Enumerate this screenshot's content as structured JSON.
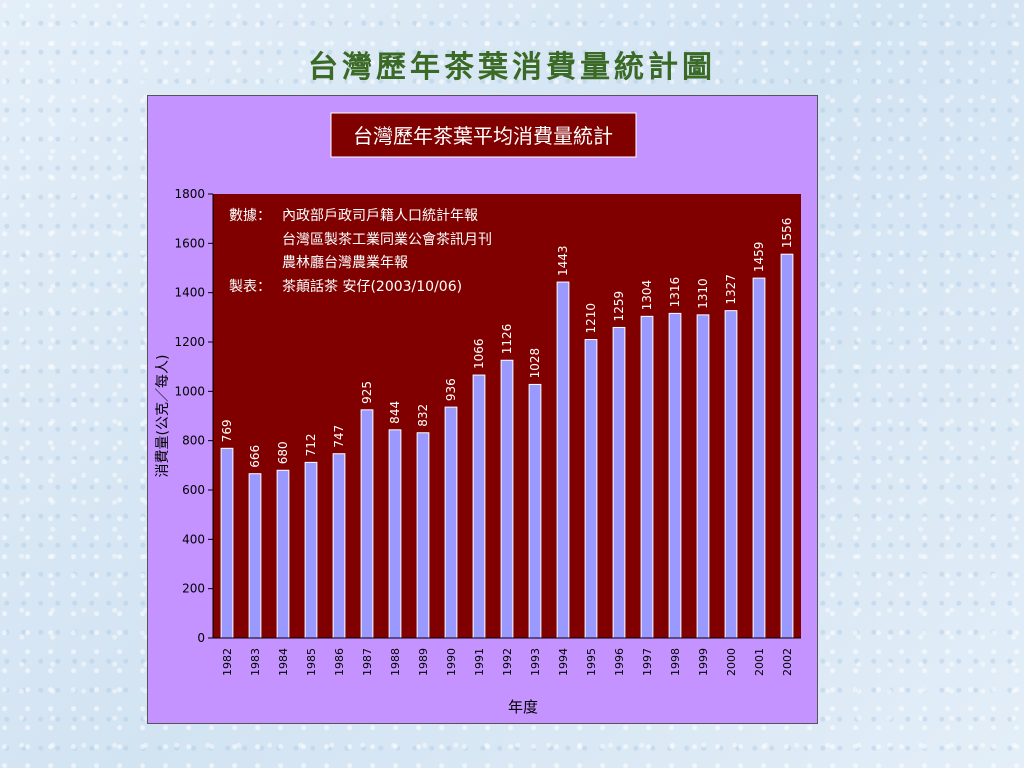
{
  "slide_title": "台灣歷年茶葉消費量統計圖",
  "colors": {
    "frame_bg": "#c493ff",
    "plot_bg": "#800000",
    "bar_fill": "#9999ff",
    "title_box_bg": "#800000",
    "slide_title_color": "#3b6a26"
  },
  "notes": {
    "source_label": "數據：",
    "source_lines": [
      "內政部戶政司戶籍人口統計年報",
      "台灣區製茶工業同業公會茶訊月刊",
      "農林廳台灣農業年報"
    ],
    "maker_label": "製表：",
    "maker": "茶顛話茶 安仔(2003/10/06)"
  },
  "chart_data": {
    "type": "bar",
    "title": "台灣歷年茶葉平均消費量統計",
    "xlabel": "年度",
    "ylabel": "消費量(公克／每人)",
    "ylim": [
      0,
      1800
    ],
    "yticks": [
      0,
      200,
      400,
      600,
      800,
      1000,
      1200,
      1400,
      1600,
      1800
    ],
    "grid": false,
    "categories": [
      "1982",
      "1983",
      "1984",
      "1985",
      "1986",
      "1987",
      "1988",
      "1989",
      "1990",
      "1991",
      "1992",
      "1993",
      "1994",
      "1995",
      "1996",
      "1997",
      "1998",
      "1999",
      "2000",
      "2001",
      "2002"
    ],
    "values": [
      769,
      666,
      680,
      712,
      747,
      925,
      844,
      832,
      936,
      1066,
      1126,
      1028,
      1443,
      1210,
      1259,
      1304,
      1316,
      1310,
      1327,
      1459,
      1556
    ]
  }
}
